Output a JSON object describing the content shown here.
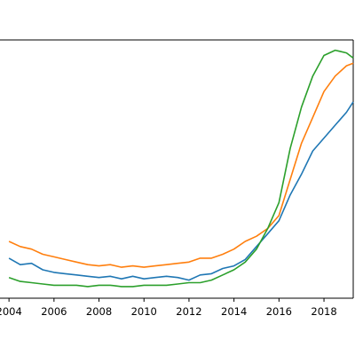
{
  "chart_data": {
    "type": "line",
    "title": "",
    "xlabel": "",
    "ylabel": "",
    "xlim": [
      2003.6,
      2019.3
    ],
    "ylim": [
      0,
      100
    ],
    "grid": false,
    "legend": "none",
    "x_tick_values": [
      2004,
      2006,
      2008,
      2010,
      2012,
      2014,
      2016,
      2018
    ],
    "x_tick_labels": [
      "2004",
      "2006",
      "2008",
      "2010",
      "2012",
      "2014",
      "2016",
      "2018"
    ],
    "series": [
      {
        "color": "#1f77b4",
        "x": [
          2004.0,
          2004.5,
          2005.0,
          2005.5,
          2006.0,
          2006.5,
          2007.0,
          2007.5,
          2008.0,
          2008.5,
          2009.0,
          2009.5,
          2010.0,
          2010.5,
          2011.0,
          2011.5,
          2012.0,
          2012.5,
          2013.0,
          2013.5,
          2014.0,
          2014.5,
          2015.0,
          2015.5,
          2016.0,
          2016.5,
          2017.0,
          2017.5,
          2018.0,
          2018.5,
          2019.0,
          2019.3
        ],
        "y": [
          15.5,
          13.0,
          13.5,
          11.0,
          10.0,
          9.5,
          9.0,
          8.5,
          8.0,
          8.5,
          7.5,
          8.5,
          7.5,
          8.0,
          8.5,
          8.0,
          7.0,
          9.0,
          9.5,
          11.5,
          12.5,
          15.0,
          20.0,
          25.0,
          30.0,
          40.0,
          48.0,
          57.0,
          62.0,
          67.0,
          72.0,
          76.0
        ]
      },
      {
        "color": "#ff7f0e",
        "x": [
          2004.0,
          2004.5,
          2005.0,
          2005.5,
          2006.0,
          2006.5,
          2007.0,
          2007.5,
          2008.0,
          2008.5,
          2009.0,
          2009.5,
          2010.0,
          2010.5,
          2011.0,
          2011.5,
          2012.0,
          2012.5,
          2013.0,
          2013.5,
          2014.0,
          2014.5,
          2015.0,
          2015.5,
          2016.0,
          2016.5,
          2017.0,
          2017.5,
          2018.0,
          2018.5,
          2019.0,
          2019.3
        ],
        "y": [
          22.0,
          20.0,
          19.0,
          17.0,
          16.0,
          15.0,
          14.0,
          13.0,
          12.5,
          13.0,
          12.0,
          12.5,
          12.0,
          12.5,
          13.0,
          13.5,
          14.0,
          15.5,
          15.5,
          17.0,
          19.0,
          22.0,
          24.0,
          27.0,
          32.0,
          46.0,
          60.0,
          70.0,
          80.0,
          86.0,
          90.0,
          91.0
        ]
      },
      {
        "color": "#2ca02c",
        "x": [
          2004.0,
          2004.5,
          2005.0,
          2005.5,
          2006.0,
          2006.5,
          2007.0,
          2007.5,
          2008.0,
          2008.5,
          2009.0,
          2009.5,
          2010.0,
          2010.5,
          2011.0,
          2011.5,
          2012.0,
          2012.5,
          2013.0,
          2013.5,
          2014.0,
          2014.5,
          2015.0,
          2015.5,
          2016.0,
          2016.5,
          2017.0,
          2017.5,
          2018.0,
          2018.5,
          2019.0,
          2019.3
        ],
        "y": [
          8.0,
          6.5,
          6.0,
          5.5,
          5.0,
          5.0,
          5.0,
          4.5,
          5.0,
          5.0,
          4.5,
          4.5,
          5.0,
          5.0,
          5.0,
          5.5,
          6.0,
          6.0,
          7.0,
          9.0,
          11.0,
          14.0,
          19.0,
          27.0,
          37.0,
          58.0,
          74.0,
          86.0,
          94.0,
          96.0,
          95.0,
          93.0
        ]
      }
    ]
  }
}
